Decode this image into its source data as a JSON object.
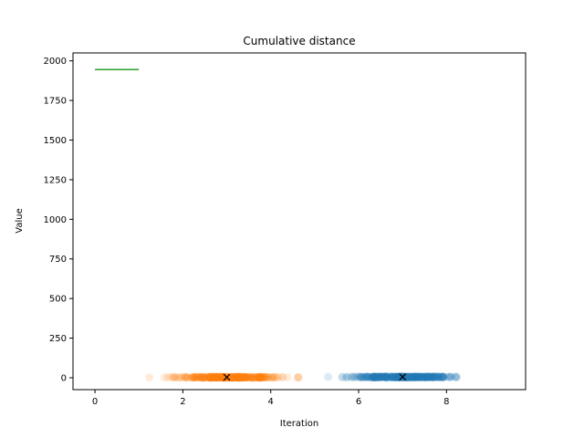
{
  "chart_data": {
    "type": "scatter",
    "title": "Cumulative distance",
    "xlabel": "Iteration",
    "ylabel": "Value",
    "xlim": [
      -0.5,
      9.8
    ],
    "ylim": [
      -75,
      2050
    ],
    "xticks": [
      0,
      2,
      4,
      6,
      8
    ],
    "yticks": [
      0,
      250,
      500,
      750,
      1000,
      1250,
      1500,
      1750,
      2000
    ],
    "grid": false,
    "legend": "none",
    "series": [
      {
        "kind": "scatter",
        "color": "#1f77b4",
        "alpha": 0.15,
        "x_min": 4.8,
        "x_max": 9.2,
        "x_mean": 7.0,
        "y": 5
      },
      {
        "kind": "scatter",
        "color": "#ff7f0e",
        "alpha": 0.15,
        "x_min": 0.7,
        "x_max": 4.9,
        "x_mean": 3.0,
        "y": 3
      },
      {
        "kind": "markers",
        "color": "#000000",
        "marker": "x",
        "points": [
          {
            "x": 3.0,
            "y": 3
          },
          {
            "x": 7.0,
            "y": 5
          }
        ]
      },
      {
        "kind": "line",
        "color": "#2ca02c",
        "points": [
          {
            "x": 0,
            "y": 1945
          },
          {
            "x": 1,
            "y": 1945
          }
        ]
      }
    ]
  }
}
